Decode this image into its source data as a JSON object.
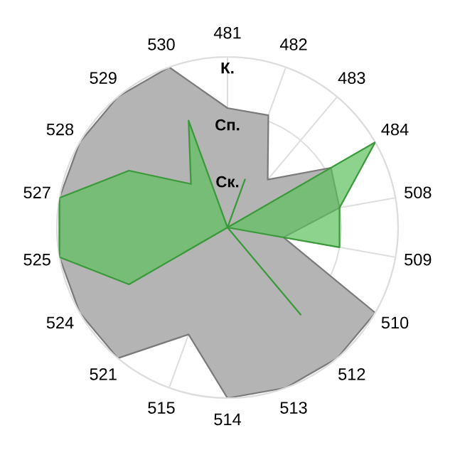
{
  "chart_data": {
    "type": "radar",
    "categories": [
      "481",
      "482",
      "483",
      "484",
      "508",
      "509",
      "510",
      "512",
      "513",
      "514",
      "515",
      "521",
      "524",
      "525",
      "527",
      "528",
      "529",
      "530"
    ],
    "series": [
      {
        "color": "#b4b4b4",
        "values": [
          2.1,
          2.1,
          1.1,
          2.1,
          2,
          1,
          3,
          3,
          3,
          3,
          2,
          3,
          3,
          3,
          3,
          3,
          3,
          3
        ]
      },
      {
        "color": "#5cc05c",
        "values": [
          0,
          0.9,
          0,
          3,
          2,
          2,
          0,
          2,
          0,
          0,
          0,
          0,
          2,
          3,
          3,
          2,
          1,
          2
        ]
      }
    ],
    "ylim": [
      0,
      3
    ],
    "yticks": [
      {
        "value": 1,
        "label": "Ск."
      },
      {
        "value": 2,
        "label": "Сп."
      },
      {
        "value": 3,
        "label": "К."
      }
    ],
    "grid": true
  }
}
